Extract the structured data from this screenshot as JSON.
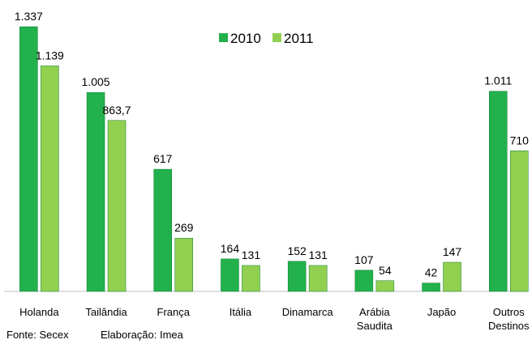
{
  "chart_data": {
    "type": "bar",
    "categories": [
      "Holanda",
      "Tailândia",
      "França",
      "Itália",
      "Dinamarca",
      "Arábia Saudita",
      "Japão",
      "Outros Destinos"
    ],
    "series": [
      {
        "name": "2010",
        "color": "#22b14c",
        "values": [
          1337,
          1005,
          617,
          164,
          152,
          107,
          42,
          1011
        ],
        "value_labels": [
          "1.337",
          "1.005",
          "617",
          "164",
          "152",
          "107",
          "42",
          "1.011"
        ]
      },
      {
        "name": "2011",
        "color": "#92d050",
        "values": [
          1139,
          863.7,
          269,
          131,
          131,
          54,
          147,
          710
        ],
        "value_labels": [
          "1.139",
          "863,7",
          "269",
          "131",
          "131",
          "54",
          "147",
          "710"
        ]
      }
    ],
    "footnotes": [
      "Fonte: Secex",
      "Elaboração: Imea"
    ]
  }
}
